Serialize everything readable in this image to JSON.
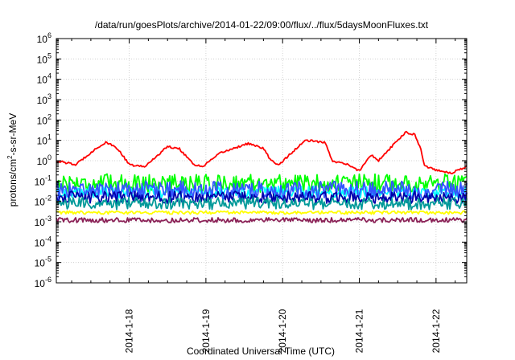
{
  "chart_data": {
    "type": "line",
    "title": "/data/run/goesPlots/archive/2014-01-22/09:00/flux/../flux/5daysMoonFluxes.txt",
    "xlabel": "Coordinated Universal Time (UTC)",
    "ylabel": {
      "pre": "protons/cm",
      "sup": "2",
      "post": "-s-sr-MeV"
    },
    "yscale": "log",
    "ylim_exp": [
      -6,
      6
    ],
    "yticks": [
      {
        "base": "10",
        "exp": "6"
      },
      {
        "base": "10",
        "exp": "5"
      },
      {
        "base": "10",
        "exp": "4"
      },
      {
        "base": "10",
        "exp": "3"
      },
      {
        "base": "10",
        "exp": "2"
      },
      {
        "base": "10",
        "exp": "1"
      },
      {
        "base": "10",
        "exp": "0"
      },
      {
        "base": "10",
        "exp": "-1"
      },
      {
        "base": "10",
        "exp": "-2"
      },
      {
        "base": "10",
        "exp": "-3"
      },
      {
        "base": "10",
        "exp": "-4"
      },
      {
        "base": "10",
        "exp": "-5"
      },
      {
        "base": "10",
        "exp": "-6"
      }
    ],
    "xrange_days": [
      17.05,
      22.4
    ],
    "xticks": [
      {
        "label": "2014-1-18",
        "day": 18
      },
      {
        "label": "2014-1-19",
        "day": 19
      },
      {
        "label": "2014-1-20",
        "day": 20
      },
      {
        "label": "2014-1-21",
        "day": 21
      },
      {
        "label": "2014-1-22",
        "day": 22
      }
    ],
    "grid": true,
    "legend": "none",
    "series": [
      {
        "color": "#ff0000",
        "noise": 0.05,
        "points": [
          [
            17.05,
            0.0
          ],
          [
            17.3,
            -0.2
          ],
          [
            17.55,
            0.55
          ],
          [
            17.7,
            0.9
          ],
          [
            17.85,
            0.6
          ],
          [
            18.0,
            -0.2
          ],
          [
            18.2,
            -0.3
          ],
          [
            18.5,
            0.7
          ],
          [
            18.65,
            0.6
          ],
          [
            18.85,
            -0.2
          ],
          [
            18.95,
            -0.3
          ],
          [
            19.2,
            0.4
          ],
          [
            19.55,
            0.85
          ],
          [
            19.75,
            0.6
          ],
          [
            19.85,
            0.0
          ],
          [
            19.95,
            -0.2
          ],
          [
            20.15,
            0.5
          ],
          [
            20.3,
            1.0
          ],
          [
            20.55,
            0.9
          ],
          [
            20.65,
            0.0
          ],
          [
            20.85,
            -0.2
          ],
          [
            21.0,
            -0.5
          ],
          [
            21.15,
            0.3
          ],
          [
            21.25,
            0.0
          ],
          [
            21.45,
            0.8
          ],
          [
            21.6,
            1.4
          ],
          [
            21.72,
            1.3
          ],
          [
            21.8,
            0.6
          ],
          [
            21.85,
            -0.25
          ],
          [
            22.0,
            -0.45
          ],
          [
            22.2,
            -0.6
          ],
          [
            22.4,
            -0.3
          ]
        ]
      },
      {
        "color": "#00ff00",
        "noise": 0.45,
        "points": [
          [
            17.05,
            -1.1
          ],
          [
            22.4,
            -1.1
          ]
        ]
      },
      {
        "color": "#00ffff",
        "noise": 0.3,
        "points": [
          [
            17.05,
            -1.55
          ],
          [
            22.4,
            -1.55
          ]
        ]
      },
      {
        "color": "#3355ff",
        "noise": 0.45,
        "points": [
          [
            17.05,
            -1.45
          ],
          [
            22.4,
            -1.45
          ]
        ]
      },
      {
        "color": "#0000aa",
        "noise": 0.3,
        "points": [
          [
            17.05,
            -1.8
          ],
          [
            22.4,
            -1.8
          ]
        ]
      },
      {
        "color": "#009999",
        "noise": 0.3,
        "points": [
          [
            17.05,
            -2.1
          ],
          [
            22.4,
            -2.1
          ]
        ]
      },
      {
        "color": "#ffff00",
        "noise": 0.08,
        "points": [
          [
            17.05,
            -2.55
          ],
          [
            22.4,
            -2.55
          ]
        ]
      },
      {
        "color": "#8b2257",
        "noise": 0.12,
        "points": [
          [
            17.05,
            -2.92
          ],
          [
            22.4,
            -2.92
          ]
        ]
      }
    ]
  }
}
